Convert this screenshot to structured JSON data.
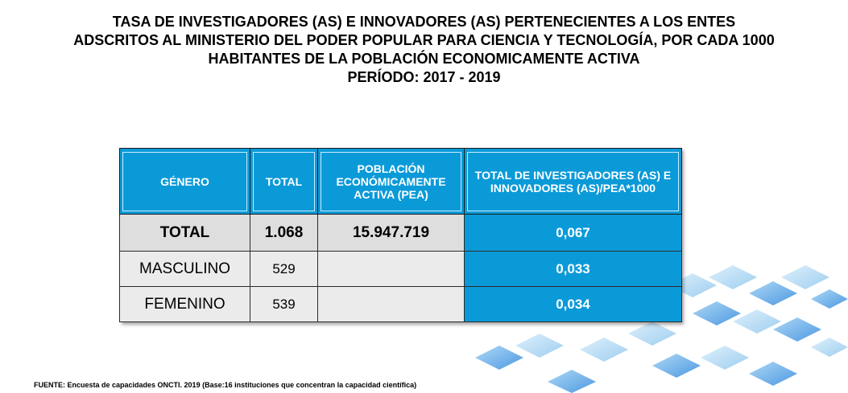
{
  "title": {
    "lines": [
      "TASA DE INVESTIGADORES (AS) E INNOVADORES (AS) PERTENECIENTES A LOS ENTES",
      "ADSCRITOS AL MINISTERIO DEL PODER POPULAR PARA CIENCIA Y TECNOLOGÍA, POR CADA 1000",
      "HABITANTES DE LA POBLACIÓN ECONOMICAMENTE ACTIVA",
      "PERÍODO: 2017 -  2019"
    ]
  },
  "table": {
    "headers": [
      "GÉNERO",
      "TOTAL",
      "POBLACIÓN ECONÓMICAMENTE ACTIVA (PEA)",
      "TOTAL DE INVESTIGADORES (AS) E INNOVADORES (AS)/PEA*1000"
    ],
    "rows": [
      {
        "genero": "TOTAL",
        "total": "1.068",
        "pea": "15.947.719",
        "tasa": "0,067"
      },
      {
        "genero": "MASCULINO",
        "total": "529",
        "pea": "",
        "tasa": "0,033"
      },
      {
        "genero": "FEMENINO",
        "total": "539",
        "pea": "",
        "tasa": "0,034"
      }
    ]
  },
  "source": "FUENTE: Encuesta de capacidades ONCTI. 2019 (Base:16 instituciones que concentran la capacidad científica)",
  "colors": {
    "header_bg": "#0b9ad8",
    "cell_bg": "#ebebeb",
    "decor_blue": "#4aa3e6"
  }
}
